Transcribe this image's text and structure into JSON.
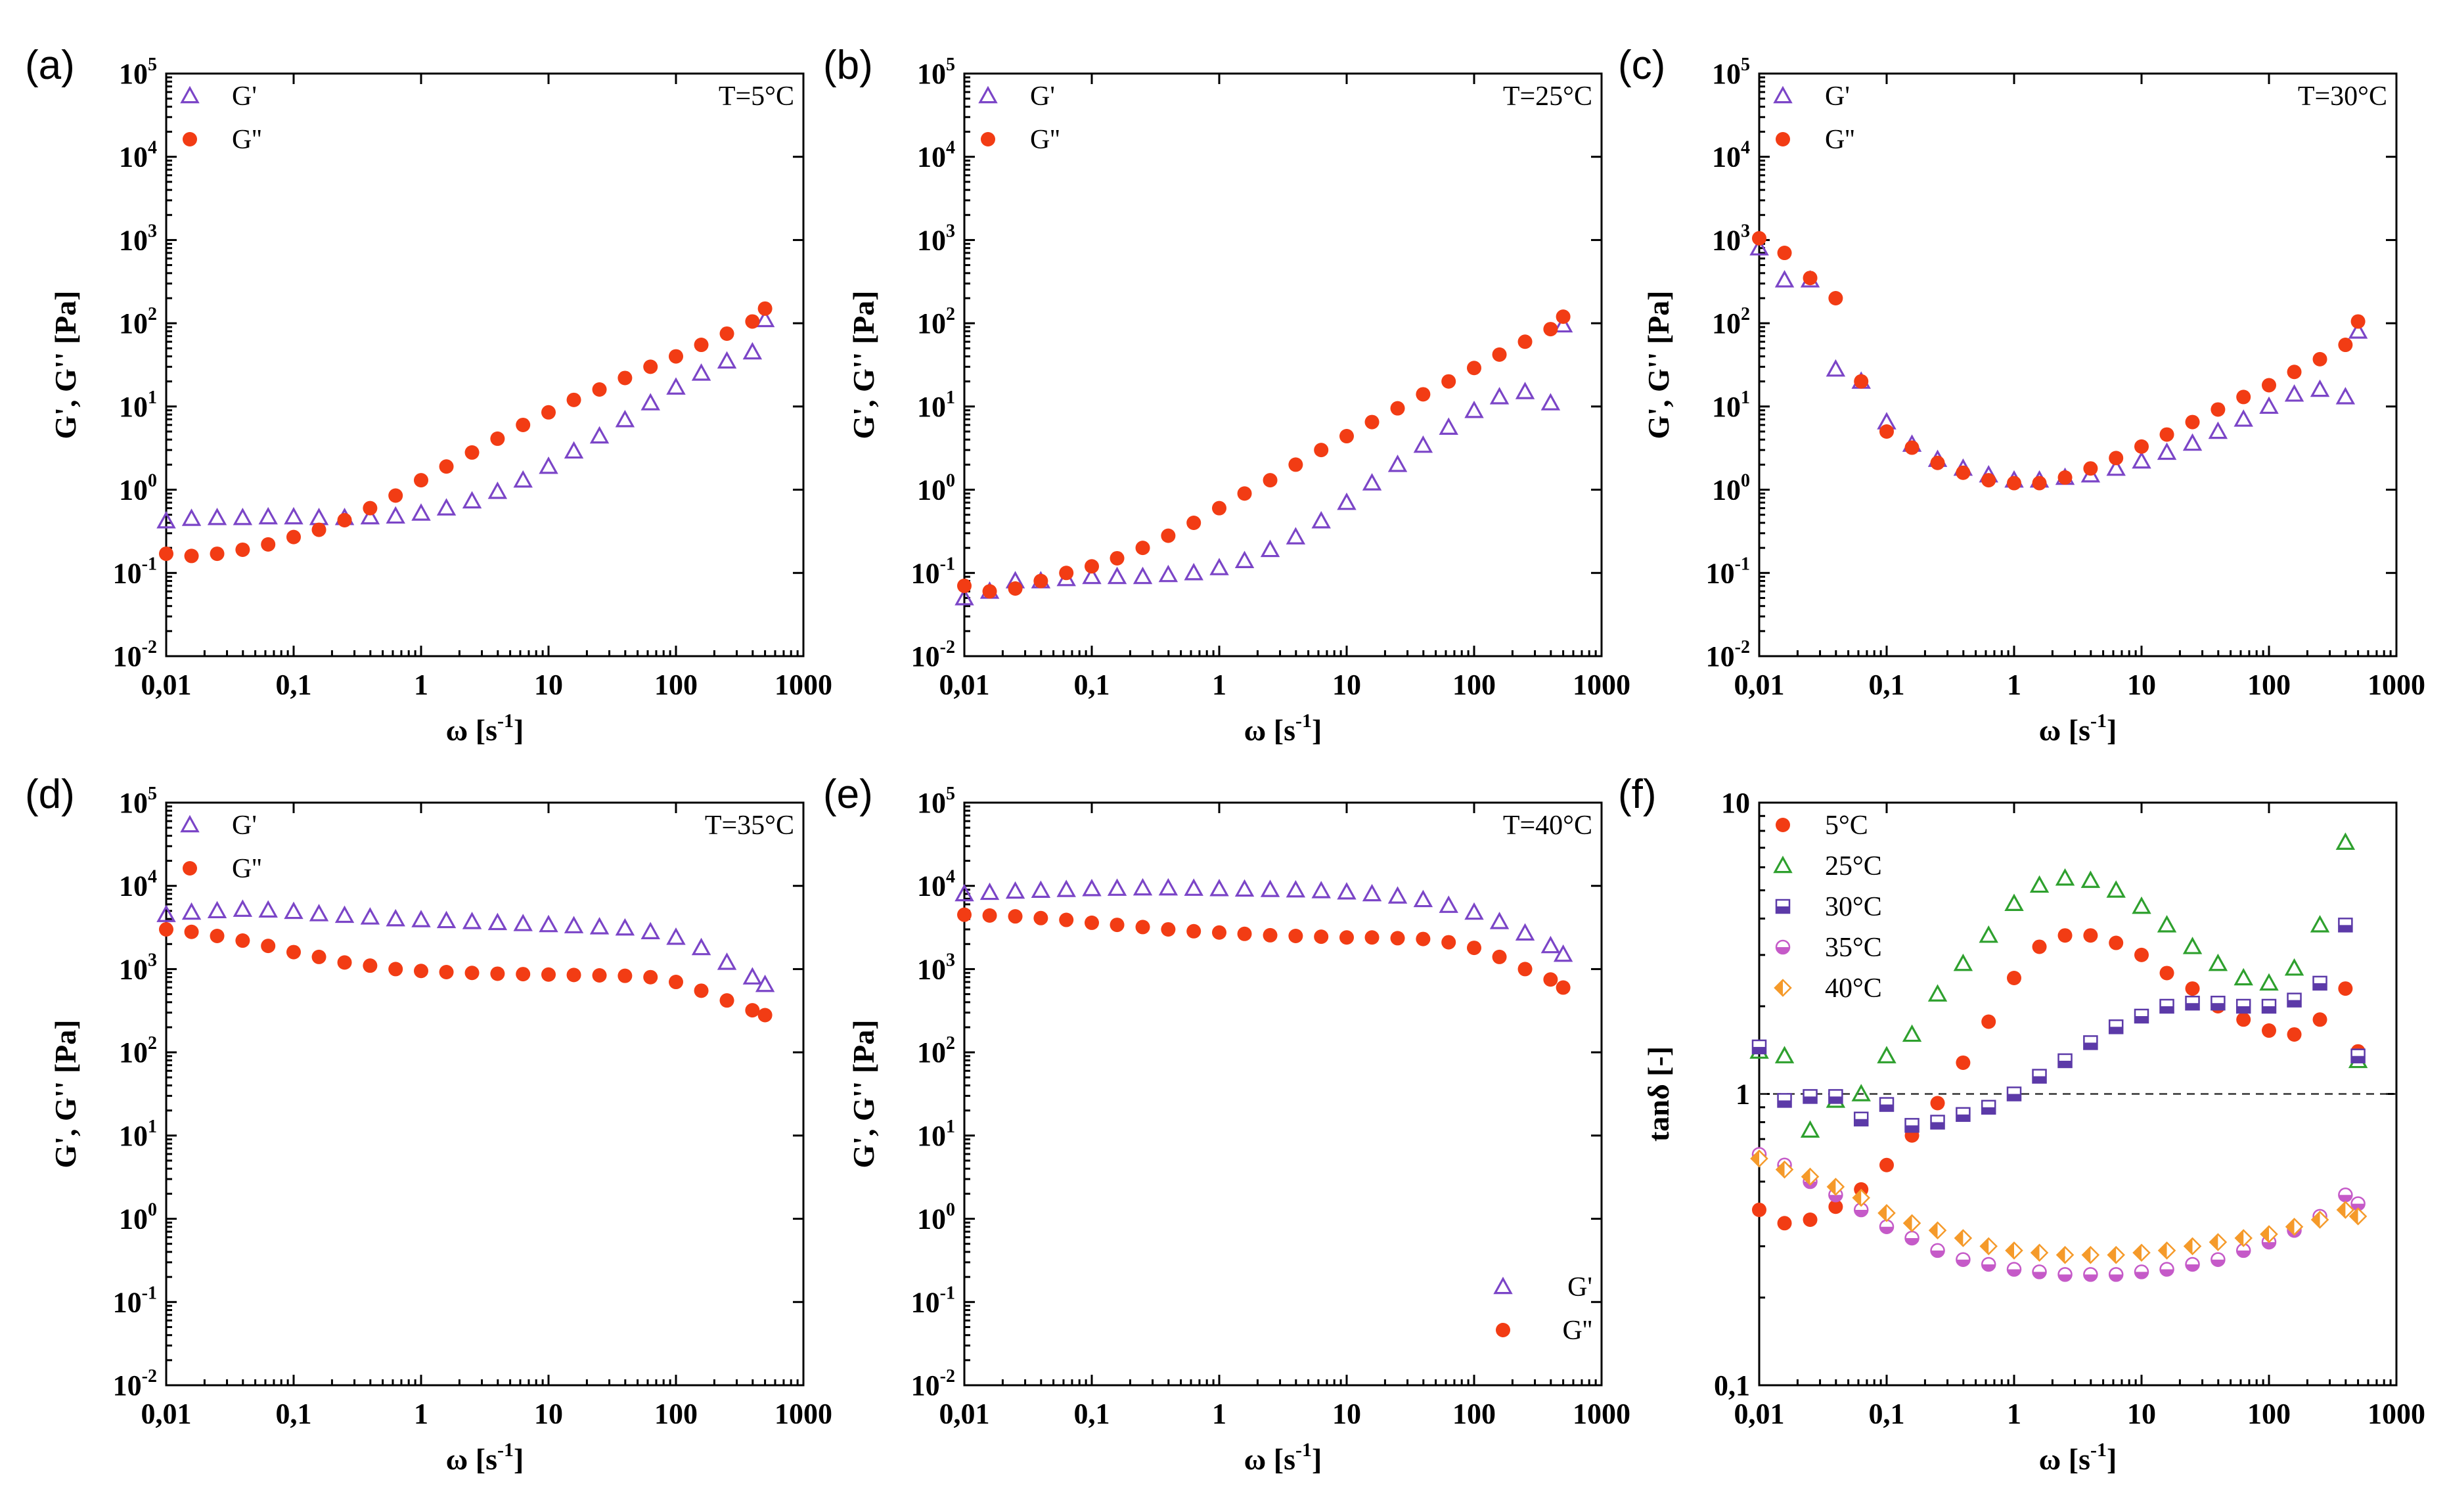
{
  "colors": {
    "G_prime": "#7b45c7",
    "G_double_prime": "#f23c14",
    "T5": "#f23c14",
    "T25": "#2ea02e",
    "T30": "#5c3aa8",
    "T35": "#c55ac8",
    "T40": "#f59a2a"
  },
  "chart_data": [
    {
      "panel": "(a)",
      "type": "scatter",
      "annotation": "T=5°C",
      "xlabel": "ω [s-1]",
      "ylabel": "G', G'' [Pa]",
      "xscale": "log",
      "yscale": "log",
      "xlim": [
        0.01,
        1000
      ],
      "ylim": [
        0.01,
        100000
      ],
      "x_tick_labels": [
        "0,01",
        "0,1",
        "1",
        "10",
        "100",
        "1000"
      ],
      "legend": [
        "G'",
        "G''"
      ],
      "series": [
        {
          "name": "G'",
          "marker": "open-triangle",
          "x": [
            0.01,
            0.0158,
            0.0251,
            0.0398,
            0.0631,
            0.1,
            0.158,
            0.251,
            0.398,
            0.631,
            1,
            1.58,
            2.51,
            3.98,
            6.31,
            10,
            15.8,
            25.1,
            39.8,
            63.1,
            100,
            158,
            251,
            398,
            500
          ],
          "y": [
            0.42,
            0.45,
            0.46,
            0.46,
            0.47,
            0.47,
            0.46,
            0.46,
            0.47,
            0.48,
            0.52,
            0.6,
            0.73,
            0.95,
            1.3,
            1.9,
            2.9,
            4.4,
            6.9,
            11,
            17,
            25,
            35,
            45,
            110
          ]
        },
        {
          "name": "G''",
          "marker": "filled-circle",
          "x": [
            0.01,
            0.0158,
            0.0251,
            0.0398,
            0.0631,
            0.1,
            0.158,
            0.251,
            0.398,
            0.631,
            1,
            1.58,
            2.51,
            3.98,
            6.31,
            10,
            15.8,
            25.1,
            39.8,
            63.1,
            100,
            158,
            251,
            398,
            500
          ],
          "y": [
            0.17,
            0.16,
            0.17,
            0.19,
            0.22,
            0.27,
            0.33,
            0.43,
            0.6,
            0.85,
            1.3,
            1.9,
            2.8,
            4.1,
            6,
            8.5,
            12,
            16,
            22,
            30,
            40,
            55,
            75,
            105,
            150
          ]
        }
      ]
    },
    {
      "panel": "(b)",
      "type": "scatter",
      "annotation": "T=25°C",
      "xlabel": "ω [s-1]",
      "ylabel": "G', G'' [Pa]",
      "xscale": "log",
      "yscale": "log",
      "xlim": [
        0.01,
        1000
      ],
      "ylim": [
        0.01,
        100000
      ],
      "x_tick_labels": [
        "0,01",
        "0,1",
        "1",
        "10",
        "100",
        "1000"
      ],
      "legend": [
        "G'",
        "G''"
      ],
      "series": [
        {
          "name": "G'",
          "marker": "open-triangle",
          "x": [
            0.01,
            0.0158,
            0.0251,
            0.0398,
            0.0631,
            0.1,
            0.158,
            0.251,
            0.398,
            0.631,
            1,
            1.58,
            2.51,
            3.98,
            6.31,
            10,
            15.8,
            25.1,
            39.8,
            63.1,
            100,
            158,
            251,
            398,
            500
          ],
          "y": [
            0.05,
            0.06,
            0.08,
            0.08,
            0.085,
            0.09,
            0.09,
            0.09,
            0.095,
            0.1,
            0.115,
            0.14,
            0.19,
            0.27,
            0.42,
            0.7,
            1.2,
            2,
            3.4,
            5.6,
            8.9,
            13,
            15,
            11,
            95
          ]
        },
        {
          "name": "G''",
          "marker": "filled-circle",
          "x": [
            0.01,
            0.0158,
            0.0251,
            0.0398,
            0.0631,
            0.1,
            0.158,
            0.251,
            0.398,
            0.631,
            1,
            1.58,
            2.51,
            3.98,
            6.31,
            10,
            15.8,
            25.1,
            39.8,
            63.1,
            100,
            158,
            251,
            398,
            500
          ],
          "y": [
            0.07,
            0.06,
            0.065,
            0.08,
            0.1,
            0.12,
            0.15,
            0.2,
            0.28,
            0.4,
            0.6,
            0.9,
            1.3,
            2,
            3,
            4.4,
            6.5,
            9.5,
            14,
            20,
            29,
            42,
            60,
            85,
            120
          ]
        }
      ]
    },
    {
      "panel": "(c)",
      "type": "scatter",
      "annotation": "T=30°C",
      "xlabel": "ω [s-1]",
      "ylabel": "G', G'' [Pa]",
      "xscale": "log",
      "yscale": "log",
      "xlim": [
        0.01,
        1000
      ],
      "ylim": [
        0.01,
        100000
      ],
      "x_tick_labels": [
        "0,01",
        "0,1",
        "1",
        "10",
        "100",
        "1000"
      ],
      "legend": [
        "G'",
        "G''"
      ],
      "series": [
        {
          "name": "G'",
          "marker": "open-triangle",
          "x": [
            0.01,
            0.0158,
            0.0251,
            0.0398,
            0.0631,
            0.1,
            0.158,
            0.251,
            0.398,
            0.631,
            1,
            1.58,
            2.51,
            3.98,
            6.31,
            10,
            15.8,
            25.1,
            39.8,
            63.1,
            100,
            158,
            251,
            398,
            500
          ],
          "y": [
            800,
            330,
            330,
            28,
            20,
            6.5,
            3.5,
            2.3,
            1.8,
            1.5,
            1.3,
            1.3,
            1.4,
            1.5,
            1.8,
            2.2,
            2.8,
            3.6,
            5,
            7,
            10,
            14,
            16,
            13,
            80
          ]
        },
        {
          "name": "G''",
          "marker": "filled-circle",
          "x": [
            0.01,
            0.0158,
            0.0251,
            0.0398,
            0.0631,
            0.1,
            0.158,
            0.251,
            0.398,
            0.631,
            1,
            1.58,
            2.51,
            3.98,
            6.31,
            10,
            15.8,
            25.1,
            39.8,
            63.1,
            100,
            158,
            251,
            398,
            500
          ],
          "y": [
            1050,
            700,
            350,
            200,
            20,
            5,
            3.2,
            2.1,
            1.6,
            1.3,
            1.2,
            1.2,
            1.4,
            1.8,
            2.4,
            3.3,
            4.6,
            6.5,
            9.2,
            13,
            18,
            26,
            37,
            55,
            105
          ]
        }
      ]
    },
    {
      "panel": "(d)",
      "type": "scatter",
      "annotation": "T=35°C",
      "xlabel": "ω [s-1]",
      "ylabel": "G', G'' [Pa]",
      "xscale": "log",
      "yscale": "log",
      "xlim": [
        0.01,
        1000
      ],
      "ylim": [
        0.01,
        100000
      ],
      "x_tick_labels": [
        "0,01",
        "0,1",
        "1",
        "10",
        "100",
        "1000"
      ],
      "legend": [
        "G'",
        "G''"
      ],
      "series": [
        {
          "name": "G'",
          "marker": "open-triangle",
          "x": [
            0.01,
            0.0158,
            0.0251,
            0.0398,
            0.0631,
            0.1,
            0.158,
            0.251,
            0.398,
            0.631,
            1,
            1.58,
            2.51,
            3.98,
            6.31,
            10,
            15.8,
            25.1,
            39.8,
            63.1,
            100,
            158,
            251,
            398,
            500
          ],
          "y": [
            4500,
            4800,
            5000,
            5200,
            5100,
            4900,
            4600,
            4400,
            4200,
            4000,
            3900,
            3800,
            3700,
            3600,
            3500,
            3400,
            3300,
            3200,
            3100,
            2800,
            2400,
            1800,
            1200,
            800,
            650
          ]
        },
        {
          "name": "G''",
          "marker": "filled-circle",
          "x": [
            0.01,
            0.0158,
            0.0251,
            0.0398,
            0.0631,
            0.1,
            0.158,
            0.251,
            0.398,
            0.631,
            1,
            1.58,
            2.51,
            3.98,
            6.31,
            10,
            15.8,
            25.1,
            39.8,
            63.1,
            100,
            158,
            251,
            398,
            500
          ],
          "y": [
            3000,
            2800,
            2500,
            2200,
            1900,
            1600,
            1400,
            1200,
            1100,
            1000,
            950,
            920,
            900,
            880,
            870,
            860,
            850,
            840,
            830,
            800,
            700,
            550,
            420,
            320,
            280
          ]
        }
      ]
    },
    {
      "panel": "(e)",
      "type": "scatter",
      "annotation": "T=40°C",
      "xlabel": "ω [s-1]",
      "ylabel": "G', G'' [Pa]",
      "xscale": "log",
      "yscale": "log",
      "xlim": [
        0.01,
        1000
      ],
      "ylim": [
        0.01,
        100000
      ],
      "x_tick_labels": [
        "0,01",
        "0,1",
        "1",
        "10",
        "100",
        "1000"
      ],
      "legend": [
        "G'",
        "G''"
      ],
      "legend_position": "bottom-right",
      "series": [
        {
          "name": "G'",
          "marker": "open-triangle",
          "x": [
            0.01,
            0.0158,
            0.0251,
            0.0398,
            0.0631,
            0.1,
            0.158,
            0.251,
            0.398,
            0.631,
            1,
            1.58,
            2.51,
            3.98,
            6.31,
            10,
            15.8,
            25.1,
            39.8,
            63.1,
            100,
            158,
            251,
            398,
            500
          ],
          "y": [
            8000,
            8300,
            8600,
            8800,
            9000,
            9200,
            9300,
            9400,
            9400,
            9300,
            9200,
            9100,
            9000,
            8900,
            8700,
            8400,
            8000,
            7500,
            6800,
            5800,
            4800,
            3700,
            2700,
            1900,
            1500
          ]
        },
        {
          "name": "G''",
          "marker": "filled-circle",
          "x": [
            0.01,
            0.0158,
            0.0251,
            0.0398,
            0.0631,
            0.1,
            0.158,
            0.251,
            0.398,
            0.631,
            1,
            1.58,
            2.51,
            3.98,
            6.31,
            10,
            15.8,
            25.1,
            39.8,
            63.1,
            100,
            158,
            251,
            398,
            500
          ],
          "y": [
            4500,
            4400,
            4300,
            4100,
            3900,
            3600,
            3400,
            3200,
            3000,
            2850,
            2750,
            2650,
            2550,
            2500,
            2450,
            2400,
            2400,
            2350,
            2300,
            2100,
            1800,
            1400,
            1000,
            750,
            600
          ]
        }
      ]
    },
    {
      "panel": "(f)",
      "type": "scatter",
      "xlabel": "ω [s-1]",
      "ylabel": "tanδ [-]",
      "xscale": "log",
      "yscale": "log",
      "xlim": [
        0.01,
        1000
      ],
      "ylim": [
        0.1,
        10
      ],
      "x_tick_labels": [
        "0,01",
        "0,1",
        "1",
        "10",
        "100",
        "1000"
      ],
      "y_tick_labels": [
        "0,1",
        "1",
        "10"
      ],
      "reference_line": 1,
      "legend": [
        "5°C",
        "25°C",
        "30°C",
        "35°C",
        "40°C"
      ],
      "series": [
        {
          "name": "5°C",
          "marker": "filled-circle",
          "x": [
            0.01,
            0.0158,
            0.0251,
            0.0398,
            0.0631,
            0.1,
            0.158,
            0.251,
            0.398,
            0.631,
            1,
            1.58,
            2.51,
            3.98,
            6.31,
            10,
            15.8,
            25.1,
            39.8,
            63.1,
            100,
            158,
            251,
            398,
            500
          ],
          "y": [
            0.4,
            0.36,
            0.37,
            0.41,
            0.47,
            0.57,
            0.72,
            0.93,
            1.28,
            1.77,
            2.5,
            3.2,
            3.5,
            3.5,
            3.3,
            3.0,
            2.6,
            2.3,
            2.0,
            1.8,
            1.65,
            1.6,
            1.8,
            2.3,
            1.4
          ]
        },
        {
          "name": "25°C",
          "marker": "open-triangle",
          "x": [
            0.01,
            0.0158,
            0.0251,
            0.0398,
            0.0631,
            0.1,
            0.158,
            0.251,
            0.398,
            0.631,
            1,
            1.58,
            2.51,
            3.98,
            6.31,
            10,
            15.8,
            25.1,
            39.8,
            63.1,
            100,
            158,
            251,
            398,
            500
          ],
          "y": [
            1.4,
            1.35,
            0.75,
            0.95,
            1.0,
            1.35,
            1.6,
            2.2,
            2.8,
            3.5,
            4.5,
            5.2,
            5.5,
            5.4,
            5.0,
            4.4,
            3.8,
            3.2,
            2.8,
            2.5,
            2.4,
            2.7,
            3.8,
            7.3,
            1.3
          ]
        },
        {
          "name": "30°C",
          "marker": "half-square",
          "x": [
            0.01,
            0.0158,
            0.0251,
            0.0398,
            0.0631,
            0.1,
            0.158,
            0.251,
            0.398,
            0.631,
            1,
            1.58,
            2.51,
            3.98,
            6.31,
            10,
            15.8,
            25.1,
            39.8,
            63.1,
            100,
            158,
            251,
            398,
            500
          ],
          "y": [
            1.45,
            0.95,
            0.98,
            0.98,
            0.82,
            0.92,
            0.78,
            0.8,
            0.85,
            0.9,
            1.0,
            1.15,
            1.3,
            1.5,
            1.7,
            1.85,
            2.0,
            2.05,
            2.05,
            2.0,
            2.0,
            2.1,
            2.4,
            3.8,
            1.35
          ]
        },
        {
          "name": "35°C",
          "marker": "half-circle",
          "x": [
            0.01,
            0.0158,
            0.0251,
            0.0398,
            0.0631,
            0.1,
            0.158,
            0.251,
            0.398,
            0.631,
            1,
            1.58,
            2.51,
            3.98,
            6.31,
            10,
            15.8,
            25.1,
            39.8,
            63.1,
            100,
            158,
            251,
            398,
            500
          ],
          "y": [
            0.62,
            0.57,
            0.5,
            0.45,
            0.4,
            0.35,
            0.32,
            0.29,
            0.27,
            0.26,
            0.25,
            0.245,
            0.24,
            0.24,
            0.24,
            0.245,
            0.25,
            0.26,
            0.27,
            0.29,
            0.31,
            0.34,
            0.38,
            0.45,
            0.42
          ]
        },
        {
          "name": "40°C",
          "marker": "half-diamond",
          "x": [
            0.01,
            0.0158,
            0.0251,
            0.0398,
            0.0631,
            0.1,
            0.158,
            0.251,
            0.398,
            0.631,
            1,
            1.58,
            2.51,
            3.98,
            6.31,
            10,
            15.8,
            25.1,
            39.8,
            63.1,
            100,
            158,
            251,
            398,
            500
          ],
          "y": [
            0.6,
            0.55,
            0.52,
            0.48,
            0.44,
            0.39,
            0.36,
            0.34,
            0.32,
            0.3,
            0.29,
            0.285,
            0.28,
            0.28,
            0.28,
            0.285,
            0.29,
            0.3,
            0.31,
            0.32,
            0.33,
            0.35,
            0.37,
            0.4,
            0.38
          ]
        }
      ]
    }
  ]
}
